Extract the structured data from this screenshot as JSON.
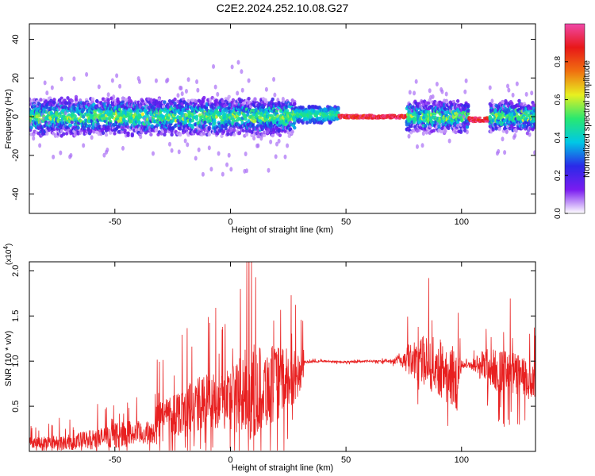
{
  "figure": {
    "title": "C2E2.2024.252.10.08.G27"
  },
  "chart_data": [
    {
      "type": "heatmap",
      "xlabel": "Height of straight line (km)",
      "ylabel": "Frequency (Hz)",
      "xlim": [
        -87,
        132
      ],
      "ylim": [
        -50,
        48
      ],
      "xticks": [
        -50,
        0,
        50,
        100
      ],
      "yticks": [
        -40,
        -20,
        0,
        20,
        40
      ],
      "grid": false,
      "colorbar": {
        "label": "Normalized spectral amplitude",
        "range": [
          0,
          1
        ],
        "ticks": [
          "0.0",
          "0.2",
          "0.4",
          "0.6",
          "0.8"
        ],
        "tick_values": [
          0,
          0.2,
          0.4,
          0.6,
          0.8
        ],
        "colors": [
          "#ffffff",
          "#7a1cf0",
          "#2a2ae8",
          "#00c8e6",
          "#28e870",
          "#e8f020",
          "#f07010",
          "#e81818",
          "#f048a8"
        ]
      },
      "segments": [
        {
          "x": [
            -87,
            28
          ],
          "center_hz": 0,
          "spread_hz": 6,
          "character": "broadband-noisy"
        },
        {
          "x": [
            28,
            47
          ],
          "center_hz": 1,
          "spread_hz": 3,
          "character": "band"
        },
        {
          "x": [
            47,
            76
          ],
          "center_hz": 0,
          "spread_hz": 1.5,
          "character": "narrow-line-high-amplitude"
        },
        {
          "x": [
            76,
            103
          ],
          "center_hz": 0,
          "spread_hz": 5,
          "character": "broadband-noisy"
        },
        {
          "x": [
            103,
            112
          ],
          "center_hz": -1.5,
          "spread_hz": 2,
          "character": "narrow-line-high-amplitude"
        },
        {
          "x": [
            112,
            132
          ],
          "center_hz": 0,
          "spread_hz": 5,
          "character": "broadband-noisy"
        }
      ]
    },
    {
      "type": "line",
      "xlabel": "Height of straight line (km)",
      "ylabel": "SNR (10 * v/v)",
      "y_multiplier": "(x10^4)",
      "xlim": [
        -87,
        132
      ],
      "ylim": [
        0,
        2.1
      ],
      "xticks": [
        -50,
        0,
        50,
        100
      ],
      "yticks": [
        0.5,
        1.0,
        1.5,
        2.0
      ],
      "ytick_labels": [
        "0.5",
        "1.0",
        "1.5",
        "2.0"
      ],
      "color": "#e82020",
      "grid": false,
      "envelope": {
        "x": [
          -87,
          -70,
          -55,
          -45,
          -33,
          -32,
          -30,
          -20,
          -10,
          0,
          8,
          20,
          31,
          32,
          40,
          50,
          60,
          70,
          78,
          85,
          92,
          98,
          100,
          103,
          110,
          115,
          120,
          125,
          132
        ],
        "baseline": [
          0.1,
          0.1,
          0.15,
          0.2,
          0.2,
          0.3,
          0.4,
          0.45,
          0.55,
          0.6,
          0.65,
          0.75,
          0.85,
          0.99,
          1.0,
          0.99,
          1.0,
          1.0,
          1.02,
          1.0,
          0.9,
          0.8,
          0.95,
          0.96,
          0.95,
          0.9,
          0.85,
          0.85,
          0.7
        ],
        "spread": [
          0.1,
          0.15,
          0.2,
          0.25,
          0.2,
          0.4,
          0.3,
          0.5,
          0.55,
          0.6,
          0.9,
          0.7,
          0.4,
          0.02,
          0.02,
          0.02,
          0.02,
          0.03,
          0.3,
          0.5,
          0.55,
          0.6,
          0.05,
          0.04,
          0.35,
          0.4,
          0.45,
          0.4,
          0.35
        ]
      }
    }
  ]
}
